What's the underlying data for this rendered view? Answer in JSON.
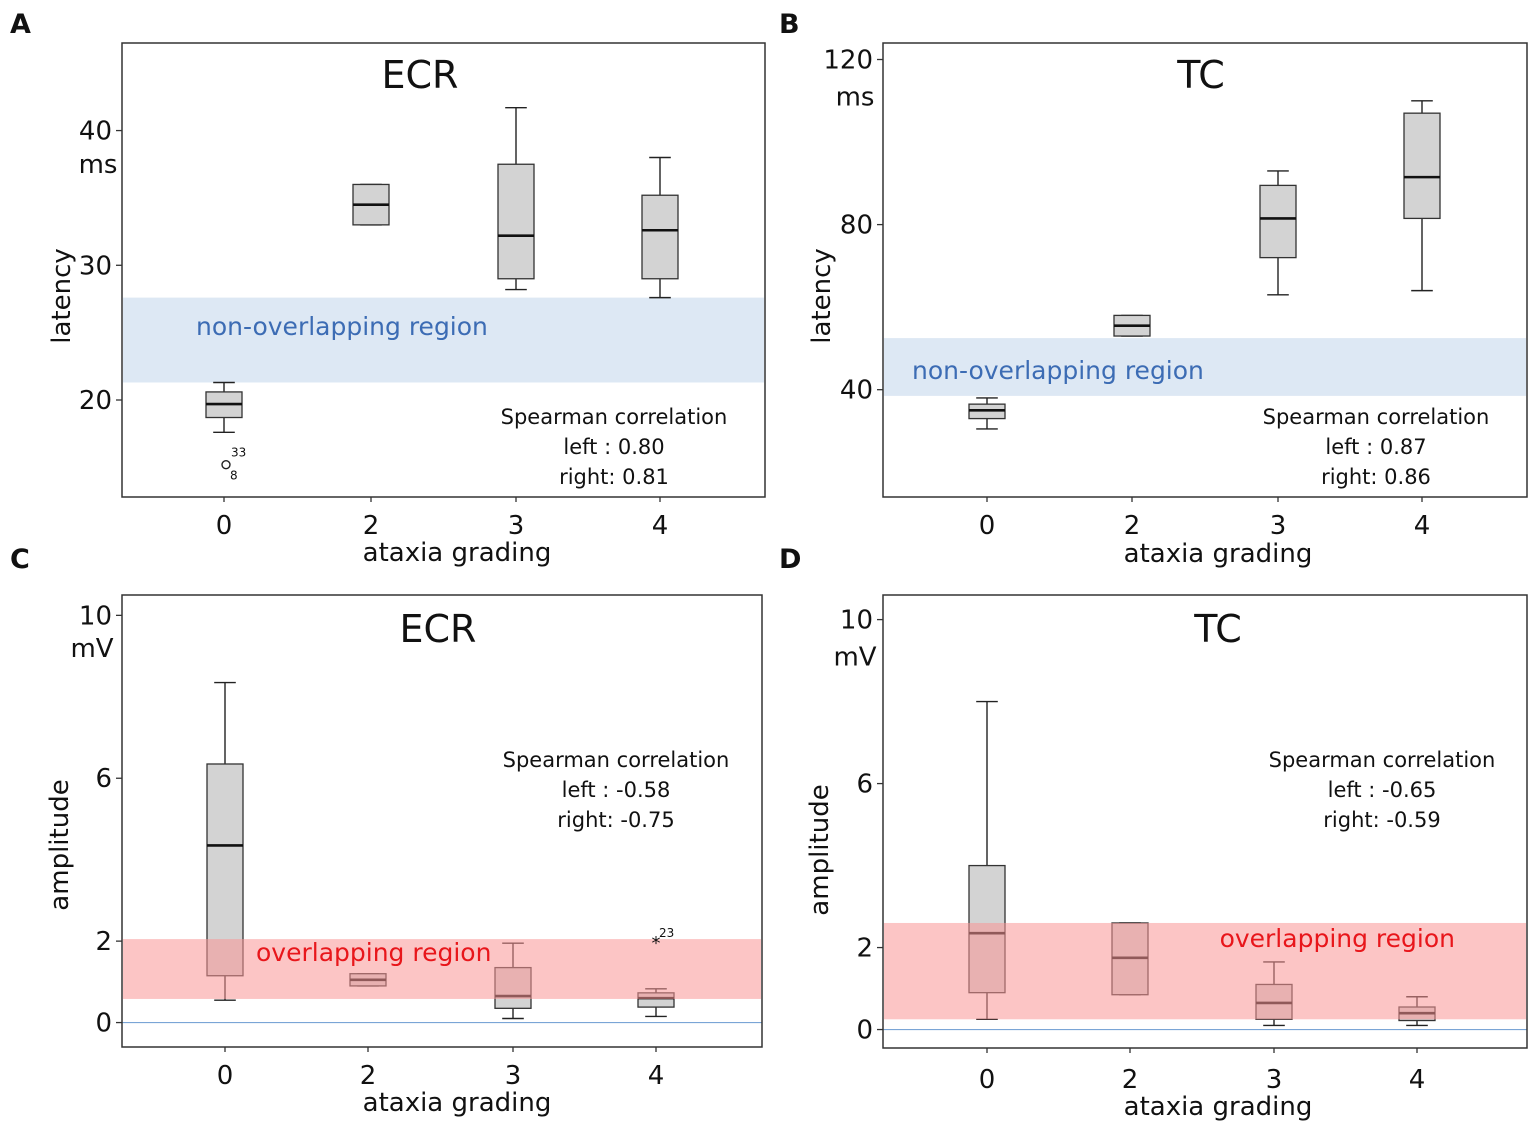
{
  "chart_data": [
    {
      "panel": "A",
      "type": "box",
      "title": "ECR",
      "xlabel": "ataxia grading",
      "ylabel": "latency",
      "yunit": "ms",
      "categories": [
        "0",
        "2",
        "3",
        "4"
      ],
      "ylim": [
        12.8,
        46.5
      ],
      "yticks": [
        20,
        30,
        40
      ],
      "y_unit_at": 37.5,
      "ytick_labels": [
        "20",
        "30",
        "40"
      ],
      "boxes": [
        {
          "category": "0",
          "min": 17.6,
          "q1": 18.7,
          "median": 19.7,
          "q3": 20.6,
          "max": 21.3
        },
        {
          "category": "2",
          "min": 33.0,
          "q1": 33.0,
          "median": 34.5,
          "q3": 36.0,
          "max": 36.0
        },
        {
          "category": "3",
          "min": 28.2,
          "q1": 29.0,
          "median": 32.2,
          "q3": 37.5,
          "max": 41.7
        },
        {
          "category": "4",
          "min": 27.6,
          "q1": 29.0,
          "median": 32.6,
          "q3": 35.2,
          "max": 38.0
        }
      ],
      "outliers": [
        {
          "category": "0",
          "value": 15.2,
          "marker": "o",
          "labels": [
            "33",
            "8"
          ]
        }
      ],
      "region": {
        "label": "non-overlapping region",
        "from": 21.3,
        "to": 27.6,
        "color": "#dde8f4",
        "text_color": "#3c6cb4"
      },
      "correlation": {
        "heading": "Spearman correlation",
        "left": "left : 0.80",
        "right": "right: 0.81"
      },
      "zero_line": false
    },
    {
      "panel": "B",
      "type": "box",
      "title": "TC",
      "xlabel": "ataxia grading",
      "ylabel": "latency",
      "yunit": "ms",
      "categories": [
        "0",
        "2",
        "3",
        "4"
      ],
      "ylim": [
        14,
        124
      ],
      "yticks": [
        40,
        80,
        120
      ],
      "y_unit_at": 111,
      "ytick_labels": [
        "40",
        "80",
        "120"
      ],
      "boxes": [
        {
          "category": "0",
          "min": 30.5,
          "q1": 33.0,
          "median": 35.0,
          "q3": 36.5,
          "max": 38.0
        },
        {
          "category": "2",
          "min": 53.0,
          "q1": 53.0,
          "median": 55.5,
          "q3": 58.0,
          "max": 58.0
        },
        {
          "category": "3",
          "min": 63.0,
          "q1": 72.0,
          "median": 81.5,
          "q3": 89.5,
          "max": 93.0
        },
        {
          "category": "4",
          "min": 64.0,
          "q1": 81.5,
          "median": 91.5,
          "q3": 107.0,
          "max": 110.0
        }
      ],
      "outliers": [],
      "region": {
        "label": "non-overlapping region",
        "from": 38.5,
        "to": 52.5,
        "color": "#dde8f4",
        "text_color": "#3c6cb4"
      },
      "correlation": {
        "heading": "Spearman correlation",
        "left": "left  : 0.87",
        "right": "right: 0.86"
      },
      "zero_line": false
    },
    {
      "panel": "C",
      "type": "box",
      "title": "ECR",
      "xlabel": "ataxia grading",
      "ylabel": "amplitude",
      "yunit": "mV",
      "categories": [
        "0",
        "2",
        "3",
        "4"
      ],
      "ylim": [
        -0.6,
        10.5
      ],
      "yticks": [
        0,
        2,
        6
      ],
      "ytick_labels": [
        "0",
        "2",
        "6"
      ],
      "y_top_label": "10",
      "y_top_label_at": 10,
      "y_unit_at": 9.2,
      "boxes": [
        {
          "category": "0",
          "min": 0.55,
          "q1": 1.15,
          "median": 4.35,
          "q3": 6.35,
          "max": 8.35
        },
        {
          "category": "2",
          "min": 0.9,
          "q1": 0.9,
          "median": 1.05,
          "q3": 1.2,
          "max": 1.2
        },
        {
          "category": "3",
          "min": 0.1,
          "q1": 0.35,
          "median": 0.65,
          "q3": 1.35,
          "max": 1.95
        },
        {
          "category": "4",
          "min": 0.15,
          "q1": 0.38,
          "median": 0.6,
          "q3": 0.73,
          "max": 0.83
        }
      ],
      "outliers": [
        {
          "category": "4",
          "value": 2.0,
          "marker": "*",
          "labels": [
            "23"
          ]
        }
      ],
      "region": {
        "label": "overlapping region",
        "from": 0.58,
        "to": 2.05,
        "color": "rgba(250,150,150,0.55)",
        "text_color": "#e8161b"
      },
      "correlation": {
        "heading": "Spearman correlation",
        "left": "left : -0.58",
        "right": "right: -0.75"
      },
      "zero_line": true
    },
    {
      "panel": "D",
      "type": "box",
      "title": "TC",
      "xlabel": "ataxia grading",
      "ylabel": "amplitude",
      "yunit": "mV",
      "categories": [
        "0",
        "2",
        "3",
        "4"
      ],
      "ylim": [
        -0.45,
        10.6
      ],
      "yticks": [
        0,
        2,
        6
      ],
      "ytick_labels": [
        "0",
        "2",
        "6"
      ],
      "y_top_label": "10",
      "y_top_label_at": 10,
      "y_unit_at": 9.1,
      "boxes": [
        {
          "category": "0",
          "min": 0.25,
          "q1": 0.9,
          "median": 2.35,
          "q3": 4.0,
          "max": 8.0
        },
        {
          "category": "2",
          "min": 0.85,
          "q1": 0.85,
          "median": 1.75,
          "q3": 2.6,
          "max": 2.6
        },
        {
          "category": "3",
          "min": 0.1,
          "q1": 0.25,
          "median": 0.65,
          "q3": 1.1,
          "max": 1.65
        },
        {
          "category": "4",
          "min": 0.1,
          "q1": 0.22,
          "median": 0.4,
          "q3": 0.55,
          "max": 0.8
        }
      ],
      "outliers": [],
      "region": {
        "label": "overlapping region",
        "from": 0.25,
        "to": 2.6,
        "color": "rgba(250,150,150,0.55)",
        "text_color": "#e8161b"
      },
      "correlation": {
        "heading": "Spearman correlation",
        "left": "left  : -0.65",
        "right": "right: -0.59"
      },
      "zero_line": true
    }
  ]
}
